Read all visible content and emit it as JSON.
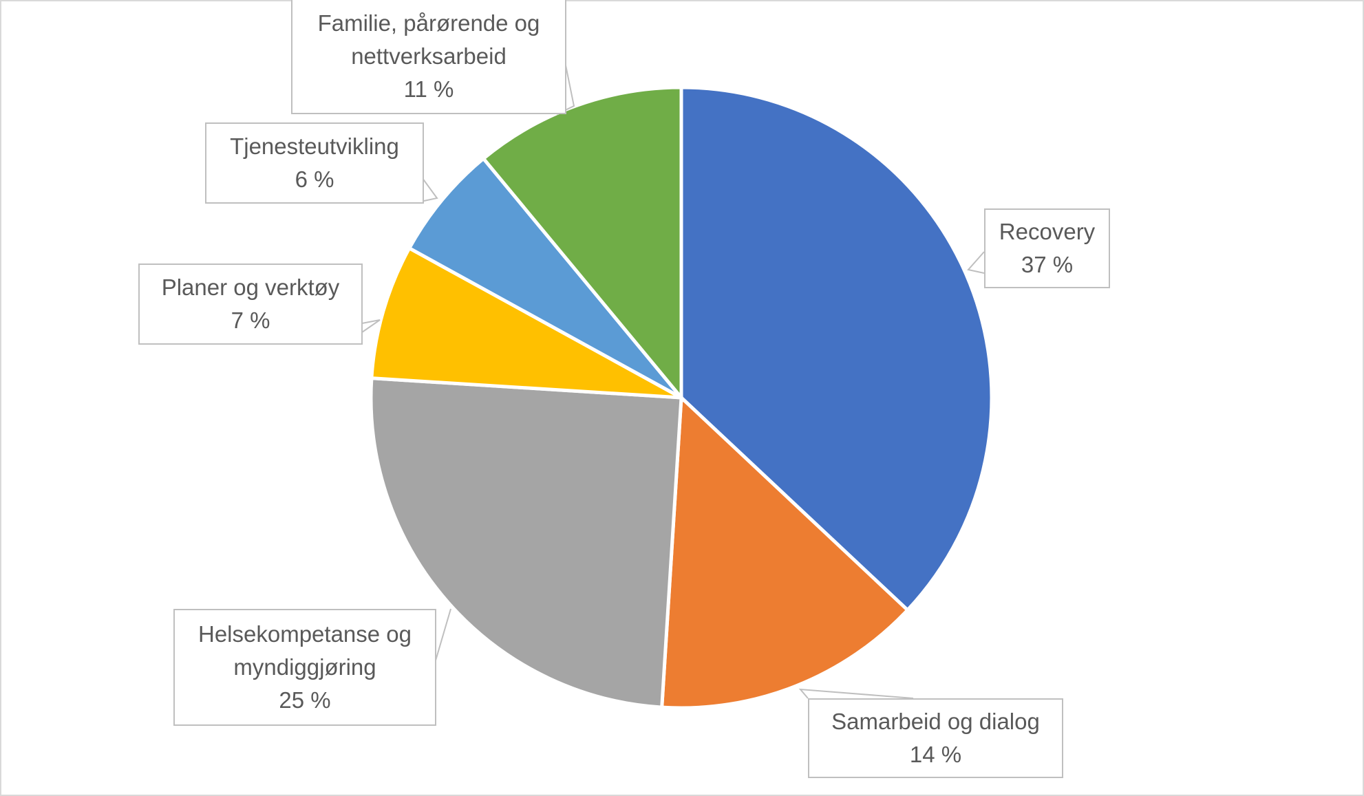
{
  "chart_data": {
    "type": "pie",
    "title": "",
    "start": "top, clockwise",
    "legend": "none (data-label callouts)",
    "slices": [
      {
        "label": "Recovery",
        "value": 37,
        "display": "37 %",
        "color": "#4472C4"
      },
      {
        "label": "Samarbeid og dialog",
        "value": 14,
        "display": "14 %",
        "color": "#ED7D31"
      },
      {
        "label": "Helsekompetanse og myndiggjøring",
        "value": 25,
        "display": "25 %",
        "color": "#A5A5A5"
      },
      {
        "label": "Planer og verktøy",
        "value": 7,
        "display": "7 %",
        "color": "#FFC000"
      },
      {
        "label": "Tjenesteutvikling",
        "value": 6,
        "display": "6 %",
        "color": "#5B9BD5"
      },
      {
        "label": "Familie, pårørende og nettverksarbeid",
        "value": 11,
        "display": "11 %",
        "color": "#70AD47"
      }
    ]
  }
}
